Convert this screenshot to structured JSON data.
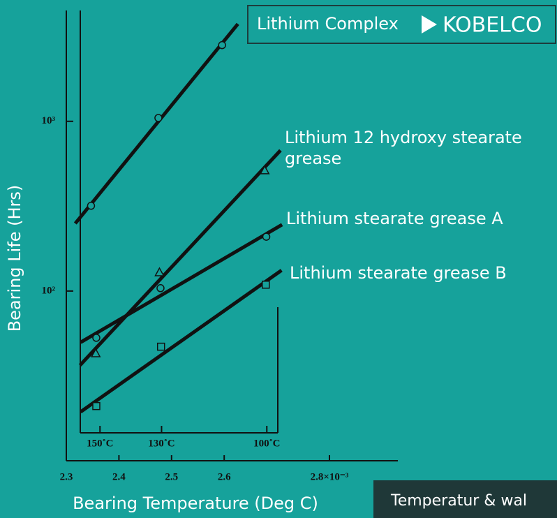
{
  "chart_data": {
    "type": "scatter",
    "y_scale": "log",
    "xlabel": "Bearing Temperature (Deg C)",
    "ylabel": "Bearing Life (Hrs)",
    "xlim": [
      2.3,
      2.93
    ],
    "xticks": [
      2.3,
      2.4,
      2.5,
      2.6,
      {
        "value": 2.8,
        "label": "2.8×10⁻³"
      }
    ],
    "x2ticks": [
      {
        "value": 2.364,
        "label": "150˚C"
      },
      {
        "value": 2.481,
        "label": "130˚C"
      },
      {
        "value": 2.681,
        "label": "100˚C"
      }
    ],
    "ylim": [
      10,
      4500
    ],
    "yticks": [
      {
        "value": 100,
        "label": "10²"
      },
      {
        "value": 1000,
        "label": "10³"
      }
    ],
    "annotations": [
      "KOBELCO",
      "Temperatur & wal"
    ],
    "series": [
      {
        "name": "Lithium Complex",
        "marker": "circle",
        "color": "#111111",
        "x": [
          2.347,
          2.475,
          2.596
        ],
        "values": [
          318,
          1047,
          2812
        ]
      },
      {
        "name": "Lithium 12 hydroxy stearate grease",
        "marker": "triangle",
        "color": "#111111",
        "x": [
          2.356,
          2.477,
          2.677
        ],
        "values": [
          43,
          129,
          515
        ]
      },
      {
        "name": "Lithium stearate grease A",
        "marker": "circle",
        "color": "#111111",
        "x": [
          2.357,
          2.479,
          2.68
        ],
        "values": [
          53,
          104,
          209
        ]
      },
      {
        "name": "Lithium stearate grease B",
        "marker": "square",
        "color": "#111111",
        "x": [
          2.357,
          2.48,
          2.679
        ],
        "values": [
          21,
          47,
          109
        ]
      }
    ]
  }
}
